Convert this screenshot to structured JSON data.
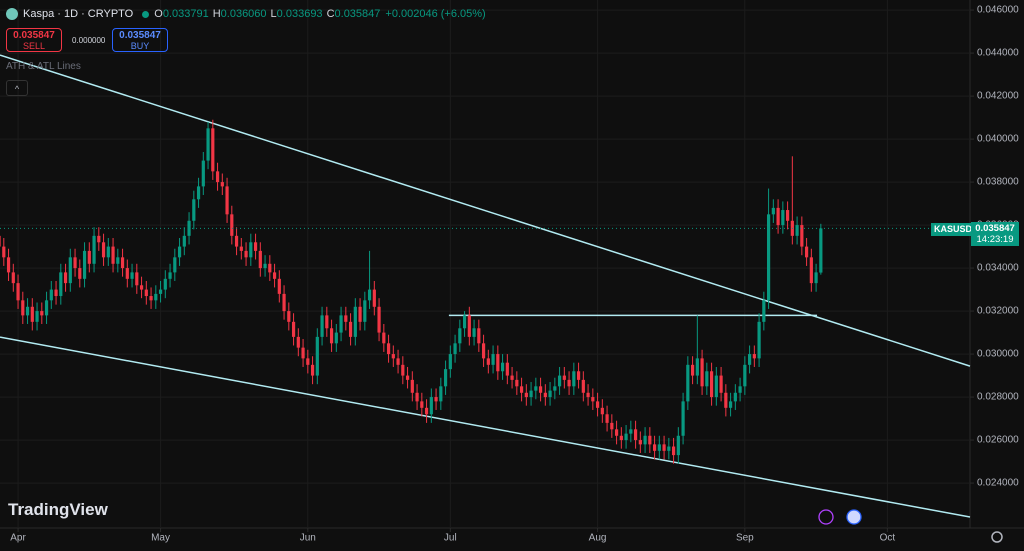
{
  "ui": {
    "symbol": "Kaspa · 1D · CRYPTO",
    "ohlc": [
      {
        "key": "O",
        "value": "0.033791"
      },
      {
        "key": "H",
        "value": "0.036060"
      },
      {
        "key": "L",
        "value": "0.033693"
      },
      {
        "key": "C",
        "value": "0.035847"
      }
    ],
    "change": "+0.002046 (+6.05%)",
    "sell_price": "0.035847",
    "sell": "SELL",
    "spread": "0.000000",
    "buy_price": "0.035847",
    "buy": "BUY",
    "indicator": "ATH & ATL Lines",
    "logo": "TradingView",
    "ticker": "KASUSD",
    "last_price": "0.035847",
    "countdown": "14:23:19"
  },
  "chart_data": {
    "type": "candlestick",
    "up_color": "#089981",
    "down_color": "#f23645",
    "line_color": "#b2ebf2",
    "grid": true,
    "xlim": [
      0.2,
      204.4
    ],
    "xticks": [
      {
        "value": 4,
        "label": "Apr"
      },
      {
        "value": 34,
        "label": "May"
      },
      {
        "value": 65,
        "label": "Jun"
      },
      {
        "value": 95,
        "label": "Jul"
      },
      {
        "value": 126,
        "label": "Aug"
      },
      {
        "value": 157,
        "label": "Sep"
      },
      {
        "value": 187,
        "label": "Oct"
      }
    ],
    "ylim": [
      0.02191,
      0.04647
    ],
    "yticks": [
      {
        "value": 0.024,
        "label": "0.024000"
      },
      {
        "value": 0.026,
        "label": "0.026000"
      },
      {
        "value": 0.028,
        "label": "0.028000"
      },
      {
        "value": 0.03,
        "label": "0.030000"
      },
      {
        "value": 0.032,
        "label": "0.032000"
      },
      {
        "value": 0.034,
        "label": "0.034000"
      },
      {
        "value": 0.036,
        "label": "0.036000"
      },
      {
        "value": 0.038,
        "label": "0.038000"
      },
      {
        "value": 0.04,
        "label": "0.040000"
      },
      {
        "value": 0.042,
        "label": "0.042000"
      },
      {
        "value": 0.044,
        "label": "0.044000"
      },
      {
        "value": 0.046,
        "label": "0.046000"
      }
    ],
    "open": [
      0.0355,
      0.035,
      0.0345,
      0.0338,
      0.0333,
      0.0325,
      0.0318,
      0.0322,
      0.0315,
      0.032,
      0.0318,
      0.0325,
      0.033,
      0.0327,
      0.0338,
      0.0333,
      0.0345,
      0.034,
      0.0335,
      0.0348,
      0.0342,
      0.0355,
      0.0352,
      0.0345,
      0.035,
      0.0342,
      0.0345,
      0.034,
      0.0335,
      0.0338,
      0.0332,
      0.033,
      0.0327,
      0.0325,
      0.0328,
      0.033,
      0.0335,
      0.0338,
      0.0345,
      0.035,
      0.0355,
      0.0362,
      0.0372,
      0.0378,
      0.039,
      0.0405,
      0.0385,
      0.038,
      0.0378,
      0.0365,
      0.0355,
      0.035,
      0.0348,
      0.0345,
      0.0352,
      0.0348,
      0.034,
      0.0342,
      0.0338,
      0.0335,
      0.0328,
      0.032,
      0.0315,
      0.0308,
      0.0303,
      0.0298,
      0.0295,
      0.029,
      0.0308,
      0.0318,
      0.0312,
      0.0305,
      0.031,
      0.0318,
      0.0315,
      0.0308,
      0.0322,
      0.0315,
      0.0325,
      0.033,
      0.0322,
      0.031,
      0.0305,
      0.03,
      0.0298,
      0.0295,
      0.029,
      0.0288,
      0.0282,
      0.0278,
      0.0275,
      0.0272,
      0.028,
      0.0278,
      0.0285,
      0.0293,
      0.03,
      0.0305,
      0.0312,
      0.0318,
      0.0308,
      0.0312,
      0.0305,
      0.0298,
      0.0295,
      0.03,
      0.0292,
      0.0296,
      0.029,
      0.0288,
      0.0285,
      0.0282,
      0.028,
      0.0283,
      0.0285,
      0.0282,
      0.028,
      0.0283,
      0.0285,
      0.029,
      0.0288,
      0.0285,
      0.0292,
      0.0288,
      0.0282,
      0.028,
      0.0278,
      0.0275,
      0.0272,
      0.0268,
      0.0265,
      0.0262,
      0.026,
      0.0263,
      0.0265,
      0.026,
      0.0258,
      0.0262,
      0.0258,
      0.0255,
      0.0258,
      0.0255,
      0.0257,
      0.0253,
      0.0262,
      0.0278,
      0.0295,
      0.029,
      0.0298,
      0.0285,
      0.0292,
      0.028,
      0.029,
      0.0282,
      0.0275,
      0.0278,
      0.0282,
      0.0285,
      0.0295,
      0.03,
      0.0298,
      0.0315,
      0.0325,
      0.0365,
      0.0368,
      0.036,
      0.0367,
      0.0362,
      0.0355,
      0.036,
      0.035,
      0.0345,
      0.0333,
      0.033791
    ],
    "high": [
      0.0359,
      0.0354,
      0.0349,
      0.0342,
      0.0337,
      0.0329,
      0.0326,
      0.0326,
      0.0324,
      0.0324,
      0.0329,
      0.0334,
      0.0334,
      0.0342,
      0.0342,
      0.0349,
      0.0349,
      0.0344,
      0.0352,
      0.0352,
      0.0359,
      0.0359,
      0.0356,
      0.0354,
      0.0354,
      0.0349,
      0.0349,
      0.0344,
      0.0342,
      0.0342,
      0.0336,
      0.0334,
      0.0331,
      0.0332,
      0.0334,
      0.0339,
      0.0342,
      0.0349,
      0.0354,
      0.0359,
      0.0366,
      0.0376,
      0.0382,
      0.0394,
      0.0408,
      0.0409,
      0.0389,
      0.0384,
      0.0382,
      0.0369,
      0.0359,
      0.0354,
      0.0352,
      0.0356,
      0.0356,
      0.0352,
      0.0346,
      0.0346,
      0.0342,
      0.0339,
      0.0332,
      0.0324,
      0.0319,
      0.0312,
      0.0307,
      0.0302,
      0.0299,
      0.0312,
      0.0322,
      0.0322,
      0.0316,
      0.0314,
      0.0322,
      0.0322,
      0.0319,
      0.0326,
      0.0326,
      0.0329,
      0.0348,
      0.0334,
      0.0326,
      0.0314,
      0.0309,
      0.0304,
      0.0302,
      0.0299,
      0.0294,
      0.0292,
      0.0286,
      0.0282,
      0.0279,
      0.0284,
      0.0284,
      0.0289,
      0.0297,
      0.0304,
      0.0309,
      0.0316,
      0.032,
      0.0322,
      0.0316,
      0.0316,
      0.0309,
      0.0302,
      0.0304,
      0.0304,
      0.03,
      0.03,
      0.0294,
      0.0292,
      0.0289,
      0.0286,
      0.0287,
      0.0289,
      0.0289,
      0.0286,
      0.0287,
      0.0289,
      0.0294,
      0.0294,
      0.0292,
      0.0296,
      0.0296,
      0.0292,
      0.0286,
      0.0284,
      0.0282,
      0.0279,
      0.0276,
      0.0272,
      0.0269,
      0.0266,
      0.0267,
      0.0269,
      0.0269,
      0.0264,
      0.0266,
      0.0266,
      0.0262,
      0.0262,
      0.0262,
      0.0261,
      0.0261,
      0.0266,
      0.0282,
      0.0299,
      0.0299,
      0.0318,
      0.0302,
      0.0296,
      0.0296,
      0.0294,
      0.0294,
      0.0286,
      0.0282,
      0.0286,
      0.0289,
      0.0299,
      0.0304,
      0.0304,
      0.0319,
      0.0329,
      0.0377,
      0.0372,
      0.0372,
      0.0371,
      0.0371,
      0.0392,
      0.0364,
      0.0364,
      0.0354,
      0.0349,
      0.0342,
      0.03606
    ],
    "low": [
      0.0346,
      0.0341,
      0.0334,
      0.0329,
      0.0321,
      0.0314,
      0.0314,
      0.0311,
      0.0311,
      0.0314,
      0.0314,
      0.0321,
      0.0323,
      0.0323,
      0.0329,
      0.0329,
      0.0336,
      0.0331,
      0.0331,
      0.0338,
      0.0338,
      0.0348,
      0.0341,
      0.0341,
      0.0338,
      0.0338,
      0.0336,
      0.0331,
      0.0331,
      0.0328,
      0.0326,
      0.0323,
      0.0321,
      0.0321,
      0.0324,
      0.0326,
      0.0331,
      0.0334,
      0.0341,
      0.0346,
      0.0351,
      0.0358,
      0.0368,
      0.0374,
      0.0386,
      0.0381,
      0.0376,
      0.0374,
      0.0361,
      0.0351,
      0.0346,
      0.0344,
      0.0341,
      0.0341,
      0.0344,
      0.0336,
      0.0336,
      0.0334,
      0.0331,
      0.0324,
      0.0316,
      0.0311,
      0.0304,
      0.0299,
      0.0294,
      0.0291,
      0.0286,
      0.0286,
      0.0304,
      0.0308,
      0.0301,
      0.0301,
      0.0306,
      0.0311,
      0.0304,
      0.0304,
      0.0311,
      0.0311,
      0.0321,
      0.0318,
      0.0306,
      0.0301,
      0.0296,
      0.0294,
      0.0291,
      0.0286,
      0.0284,
      0.0278,
      0.0274,
      0.0271,
      0.0268,
      0.0268,
      0.0274,
      0.0274,
      0.0281,
      0.0289,
      0.0296,
      0.0301,
      0.0308,
      0.0304,
      0.0304,
      0.0301,
      0.0294,
      0.0291,
      0.0291,
      0.0288,
      0.0288,
      0.0286,
      0.0284,
      0.0281,
      0.0278,
      0.0276,
      0.0276,
      0.0279,
      0.0278,
      0.0276,
      0.0276,
      0.0279,
      0.0281,
      0.0284,
      0.0281,
      0.0281,
      0.0284,
      0.0278,
      0.0276,
      0.0274,
      0.0271,
      0.0268,
      0.0264,
      0.0261,
      0.0258,
      0.0256,
      0.0256,
      0.0259,
      0.0256,
      0.0254,
      0.0254,
      0.0254,
      0.0251,
      0.0251,
      0.0251,
      0.0251,
      0.0249,
      0.0249,
      0.0258,
      0.0274,
      0.0286,
      0.0286,
      0.0281,
      0.0281,
      0.0276,
      0.0276,
      0.0278,
      0.0271,
      0.0271,
      0.0274,
      0.0278,
      0.0281,
      0.0291,
      0.0294,
      0.0294,
      0.0311,
      0.0321,
      0.0361,
      0.0356,
      0.0356,
      0.0358,
      0.0351,
      0.0351,
      0.0346,
      0.0341,
      0.0329,
      0.0329,
      0.033693
    ],
    "close": [
      0.035,
      0.0345,
      0.0338,
      0.0333,
      0.0325,
      0.0318,
      0.0322,
      0.0315,
      0.032,
      0.0318,
      0.0325,
      0.033,
      0.0327,
      0.0338,
      0.0333,
      0.0345,
      0.034,
      0.0335,
      0.0348,
      0.0342,
      0.0355,
      0.0352,
      0.0345,
      0.035,
      0.0342,
      0.0345,
      0.034,
      0.0335,
      0.0338,
      0.0332,
      0.033,
      0.0327,
      0.0325,
      0.0328,
      0.033,
      0.0335,
      0.0338,
      0.0345,
      0.035,
      0.0355,
      0.0362,
      0.0372,
      0.0378,
      0.039,
      0.0405,
      0.0385,
      0.038,
      0.0378,
      0.0365,
      0.0355,
      0.035,
      0.0348,
      0.0345,
      0.0352,
      0.0348,
      0.034,
      0.0342,
      0.0338,
      0.0335,
      0.0328,
      0.032,
      0.0315,
      0.0308,
      0.0303,
      0.0298,
      0.0295,
      0.029,
      0.0308,
      0.0318,
      0.0312,
      0.0305,
      0.031,
      0.0318,
      0.0315,
      0.0308,
      0.0322,
      0.0315,
      0.0325,
      0.033,
      0.0322,
      0.031,
      0.0305,
      0.03,
      0.0298,
      0.0295,
      0.029,
      0.0288,
      0.0282,
      0.0278,
      0.0275,
      0.0272,
      0.028,
      0.0278,
      0.0285,
      0.0293,
      0.03,
      0.0305,
      0.0312,
      0.0318,
      0.0308,
      0.0312,
      0.0305,
      0.0298,
      0.0295,
      0.03,
      0.0292,
      0.0296,
      0.029,
      0.0288,
      0.0285,
      0.0282,
      0.028,
      0.0283,
      0.0285,
      0.0282,
      0.028,
      0.0283,
      0.0285,
      0.029,
      0.0288,
      0.0285,
      0.0292,
      0.0288,
      0.0282,
      0.028,
      0.0278,
      0.0275,
      0.0272,
      0.0268,
      0.0265,
      0.0262,
      0.026,
      0.0263,
      0.0265,
      0.026,
      0.0258,
      0.0262,
      0.0258,
      0.0255,
      0.0258,
      0.0255,
      0.0257,
      0.0253,
      0.0262,
      0.0278,
      0.0295,
      0.029,
      0.0298,
      0.0285,
      0.0292,
      0.028,
      0.029,
      0.0282,
      0.0275,
      0.0278,
      0.0282,
      0.0285,
      0.0295,
      0.03,
      0.0298,
      0.0315,
      0.0325,
      0.0365,
      0.0368,
      0.036,
      0.0367,
      0.0362,
      0.0355,
      0.036,
      0.035,
      0.0345,
      0.0333,
      0.0338,
      0.035847
    ],
    "trendlines": [
      {
        "x": [
          0.2,
          204.4
        ],
        "y": [
          0.04391,
          0.02944
        ]
      },
      {
        "x": [
          0.2,
          204.4
        ],
        "y": [
          0.03079,
          0.02242
        ]
      },
      {
        "x": [
          94.7,
          172.2
        ],
        "y": [
          0.0318,
          0.0318
        ]
      }
    ]
  }
}
